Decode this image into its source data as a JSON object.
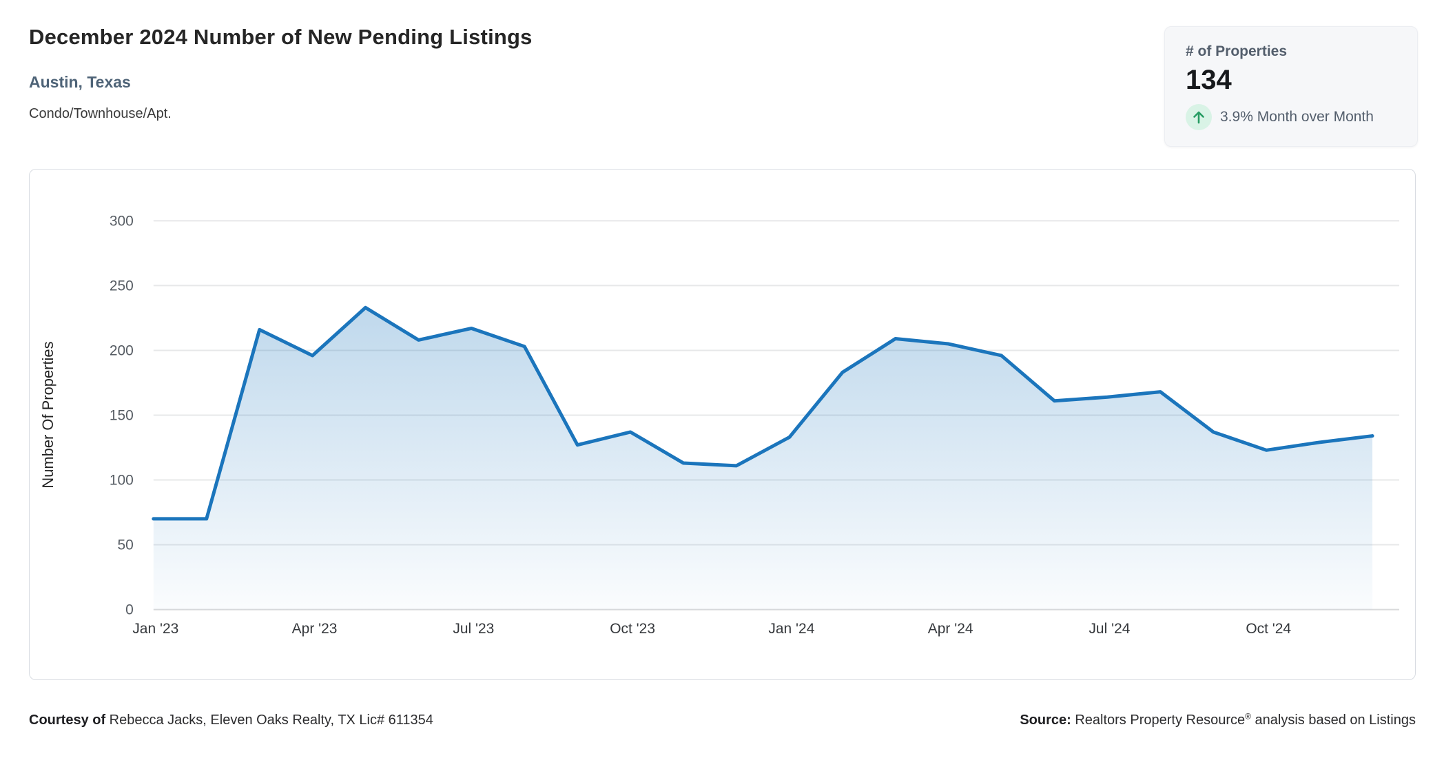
{
  "header": {
    "title": "December 2024 Number of New Pending Listings",
    "subtitle": "Austin, Texas",
    "property_type": "Condo/Townhouse/Apt."
  },
  "stat_card": {
    "label": "# of Properties",
    "value": "134",
    "trend_text": "3.9% Month over Month",
    "trend_direction": "up",
    "trend_arrow_color": "#279c63",
    "trend_circle_color": "#d9f3e6"
  },
  "chart_data": {
    "type": "area",
    "title": "December 2024 Number of New Pending Listings",
    "ylabel": "Number Of Properties",
    "xlabel": "",
    "x": [
      "Jan '23",
      "Feb '23",
      "Mar '23",
      "Apr '23",
      "May '23",
      "Jun '23",
      "Jul '23",
      "Aug '23",
      "Sep '23",
      "Oct '23",
      "Nov '23",
      "Dec '23",
      "Jan '24",
      "Feb '24",
      "Mar '24",
      "Apr '24",
      "May '24",
      "Jun '24",
      "Jul '24",
      "Aug '24",
      "Sep '24",
      "Oct '24",
      "Nov '24",
      "Dec '24"
    ],
    "values": [
      70,
      70,
      216,
      196,
      233,
      208,
      217,
      203,
      127,
      137,
      113,
      111,
      133,
      183,
      209,
      205,
      196,
      161,
      164,
      168,
      137,
      123,
      129,
      134
    ],
    "xtick_indices": [
      0,
      3,
      6,
      9,
      12,
      15,
      18,
      21
    ],
    "xtick_labels": [
      "Jan '23",
      "Apr '23",
      "Jul '23",
      "Oct '23",
      "Jan '24",
      "Apr '24",
      "Jul '24",
      "Oct '24"
    ],
    "yticks": [
      0,
      50,
      100,
      150,
      200,
      250,
      300
    ],
    "ylim": [
      0,
      300
    ],
    "grid": "horizontal",
    "legend": "none",
    "line_color": "#1b75bc",
    "area_fill_color": "#1b75bc",
    "gridline_color": "#e7e8e9",
    "baseline_color": "#d9dadb"
  },
  "footer": {
    "courtesy_bold": "Courtesy of",
    "courtesy_text": " Rebecca Jacks, Eleven Oaks Realty, TX Lic# 611354",
    "source_bold": "Source:",
    "source_text_pre": " Realtors Property Resource",
    "source_reg_mark": "®",
    "source_text_post": " analysis based on Listings"
  }
}
